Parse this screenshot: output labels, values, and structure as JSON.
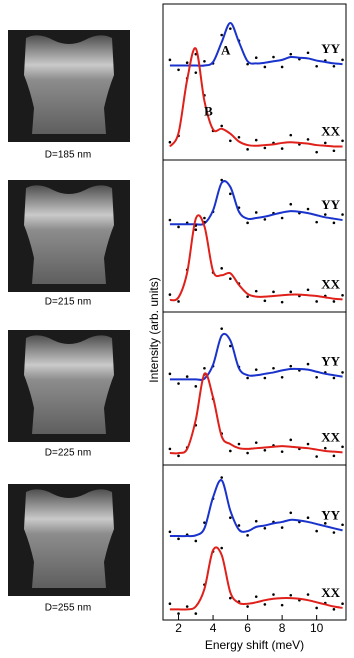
{
  "sample_labels": [
    "D=185 nm",
    "D=215 nm",
    "D=225 nm",
    "D=255 nm"
  ],
  "shared_ylabel": "Intensity (arb. units)",
  "chart_data": [
    {
      "type": "line",
      "xlim": [
        1.1,
        11.7
      ],
      "ylim": [
        0,
        10
      ],
      "annotations": [
        "A",
        "B"
      ],
      "x": [
        1.5,
        2,
        2.5,
        3,
        3.5,
        4,
        4.5,
        5,
        5.5,
        6,
        6.5,
        7,
        7.5,
        8,
        8.5,
        9,
        9.5,
        10,
        10.5,
        11,
        11.5
      ],
      "series": [
        {
          "name": "YY",
          "color": "#1a33cc",
          "values": [
            6.3,
            6.3,
            6.3,
            6.3,
            6.3,
            6.55,
            7.95,
            9.3,
            7.95,
            6.6,
            6.45,
            6.5,
            6.6,
            6.7,
            6.9,
            6.85,
            6.8,
            6.65,
            6.55,
            6.45,
            6.4
          ],
          "points": [
            6.7,
            6.0,
            6.5,
            5.8,
            6.6,
            6.45,
            8.45,
            8.9,
            8.05,
            6.4,
            6.85,
            6.2,
            6.9,
            6.2,
            7.1,
            6.75,
            7.2,
            6.25,
            6.65,
            6.25,
            6.7
          ]
        },
        {
          "name": "XX",
          "color": "#e0201a",
          "values": [
            0.6,
            1.55,
            5.3,
            7.5,
            3.8,
            1.8,
            1.85,
            1.5,
            0.95,
            0.7,
            0.65,
            0.7,
            0.75,
            0.85,
            0.9,
            0.85,
            0.8,
            0.7,
            0.65,
            0.6,
            0.6
          ],
          "points": [
            0.9,
            1.35,
            5.4,
            7.1,
            4.2,
            1.7,
            2.05,
            1.0,
            1.25,
            0.4,
            1.05,
            0.5,
            0.85,
            0.45,
            1.4,
            0.75,
            1.1,
            0.2,
            0.85,
            0.3,
            1.0
          ]
        }
      ]
    },
    {
      "type": "line",
      "xlim": [
        1.1,
        11.7
      ],
      "ylim": [
        0,
        10
      ],
      "x": [
        1.5,
        2,
        2.5,
        3,
        3.5,
        4,
        4.5,
        5,
        5.5,
        6,
        6.5,
        7,
        7.5,
        8,
        8.5,
        9,
        9.5,
        10,
        10.5,
        11,
        11.5
      ],
      "series": [
        {
          "name": "YY",
          "color": "#1a33cc",
          "values": [
            6.0,
            6.0,
            6.0,
            6.0,
            6.05,
            7.0,
            9.0,
            8.7,
            6.9,
            6.4,
            6.45,
            6.55,
            6.7,
            6.85,
            6.95,
            6.9,
            6.8,
            6.65,
            6.5,
            6.4,
            6.3
          ],
          "points": [
            6.3,
            5.8,
            6.1,
            5.6,
            6.45,
            6.9,
            9.2,
            8.2,
            7.2,
            6.1,
            6.85,
            6.35,
            6.8,
            6.45,
            7.45,
            6.8,
            7.1,
            6.15,
            6.7,
            6.1,
            6.7
          ]
        },
        {
          "name": "XX",
          "color": "#e0201a",
          "values": [
            0.5,
            0.7,
            2.5,
            6.4,
            5.85,
            2.6,
            2.3,
            2.45,
            1.6,
            0.95,
            0.75,
            0.75,
            0.8,
            0.85,
            0.9,
            0.9,
            0.85,
            0.8,
            0.7,
            0.6,
            0.55
          ],
          "points": [
            0.9,
            0.4,
            2.7,
            5.9,
            6.15,
            2.5,
            2.8,
            2.05,
            1.7,
            0.75,
            1.15,
            0.45,
            1.1,
            0.35,
            1.1,
            0.8,
            1.25,
            0.4,
            0.8,
            0.4,
            0.85
          ]
        }
      ]
    },
    {
      "type": "line",
      "xlim": [
        1.1,
        11.7
      ],
      "ylim": [
        0,
        10
      ],
      "x": [
        1.5,
        2,
        2.5,
        3,
        3.5,
        4,
        4.5,
        5,
        5.5,
        6,
        6.5,
        7,
        7.5,
        8,
        8.5,
        9,
        9.5,
        10,
        10.5,
        11,
        11.5
      ],
      "series": [
        {
          "name": "YY",
          "color": "#1a33cc",
          "values": [
            5.8,
            5.8,
            5.8,
            5.8,
            5.85,
            6.85,
            8.95,
            8.6,
            6.6,
            6.1,
            6.1,
            6.2,
            6.3,
            6.45,
            6.55,
            6.55,
            6.5,
            6.35,
            6.2,
            6.1,
            6.0
          ],
          "points": [
            6.2,
            5.5,
            6.0,
            5.3,
            6.15,
            6.75,
            9.45,
            8.2,
            6.7,
            5.9,
            6.5,
            5.9,
            6.6,
            5.95,
            6.75,
            6.45,
            6.9,
            5.95,
            6.3,
            5.9,
            6.3
          ]
        },
        {
          "name": "XX",
          "color": "#e0201a",
          "values": [
            0.5,
            0.5,
            0.8,
            2.9,
            6.2,
            4.5,
            1.7,
            1.15,
            0.85,
            0.8,
            0.85,
            0.9,
            0.95,
            1.0,
            0.95,
            0.9,
            0.85,
            0.75,
            0.65,
            0.6,
            0.55
          ],
          "points": [
            0.8,
            0.3,
            0.9,
            2.5,
            6.6,
            4.4,
            1.9,
            0.65,
            1.15,
            0.5,
            1.25,
            0.7,
            1.05,
            0.6,
            1.45,
            0.8,
            1.15,
            0.25,
            0.85,
            0.3,
            0.95
          ]
        }
      ]
    },
    {
      "type": "line",
      "xlim": [
        1.1,
        11.7
      ],
      "ylim": [
        0,
        10
      ],
      "xticks": [
        2,
        4,
        6,
        8,
        10
      ],
      "xlabel": "Energy shift (meV)",
      "x": [
        1.5,
        2,
        2.5,
        3,
        3.5,
        4,
        4.5,
        5,
        5.5,
        6,
        6.5,
        7,
        7.5,
        8,
        8.5,
        9,
        9.5,
        10,
        10.5,
        11,
        11.5
      ],
      "series": [
        {
          "name": "YY",
          "color": "#1a33cc",
          "values": [
            5.6,
            5.6,
            5.6,
            5.65,
            6.15,
            8.35,
            9.55,
            7.4,
            6.05,
            5.95,
            6.25,
            6.35,
            6.5,
            6.6,
            6.75,
            6.7,
            6.6,
            6.45,
            6.3,
            6.15,
            6.0
          ],
          "points": [
            5.9,
            5.4,
            5.7,
            5.25,
            6.55,
            8.25,
            9.75,
            6.9,
            6.35,
            5.65,
            6.65,
            6.15,
            6.6,
            6.2,
            7.25,
            6.6,
            6.9,
            5.95,
            6.5,
            5.85,
            6.4
          ]
        },
        {
          "name": "XX",
          "color": "#e0201a",
          "values": [
            0.4,
            0.4,
            0.4,
            0.6,
            1.85,
            4.6,
            4.25,
            1.6,
            0.85,
            0.8,
            0.9,
            1.05,
            1.15,
            1.2,
            1.2,
            1.15,
            1.05,
            0.9,
            0.75,
            0.6,
            0.5
          ],
          "points": [
            0.8,
            0.1,
            0.6,
            0.1,
            2.15,
            4.5,
            4.75,
            1.2,
            0.95,
            0.6,
            1.3,
            0.75,
            1.45,
            0.7,
            1.4,
            1.05,
            1.45,
            0.5,
            0.85,
            0.4,
            0.8
          ]
        }
      ]
    }
  ]
}
